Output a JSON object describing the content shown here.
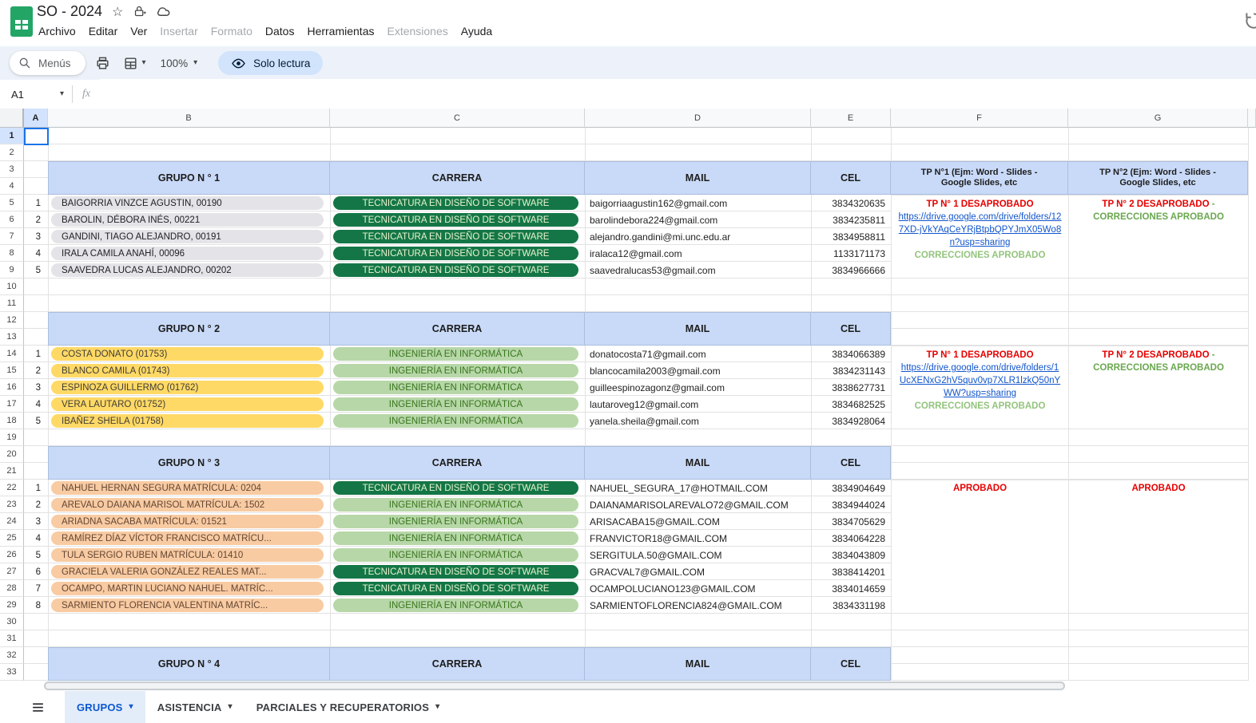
{
  "app": {
    "title": "SO - 2024"
  },
  "toolbar": {
    "search_label": "Menús",
    "zoom_level": "100%",
    "readonly_label": "Solo lectura"
  },
  "formula_bar": {
    "cell_ref": "A1",
    "fx_label": "fx"
  },
  "menus": [
    {
      "label": "Archivo",
      "enabled": true
    },
    {
      "label": "Editar",
      "enabled": true
    },
    {
      "label": "Ver",
      "enabled": true
    },
    {
      "label": "Insertar",
      "enabled": false
    },
    {
      "label": "Formato",
      "enabled": false
    },
    {
      "label": "Datos",
      "enabled": true
    },
    {
      "label": "Herramientas",
      "enabled": true
    },
    {
      "label": "Extensiones",
      "enabled": false
    },
    {
      "label": "Ayuda",
      "enabled": true
    }
  ],
  "icons": {
    "caret": "▾",
    "star": "☆"
  },
  "grid": {
    "columns": [
      "A",
      "B",
      "C",
      "D",
      "E",
      "F",
      "G"
    ],
    "visible_rows": 33,
    "selected_cell": "A1",
    "colors": {
      "band": "#c9daf8",
      "status_red": "#e60000",
      "link_blue": "#1155cc",
      "note_light_green": "#93c47d",
      "note_green": "#6aa84f"
    },
    "careers": {
      "tds": {
        "label": "TECNICATURA EN DISEÑO DE SOFTWARE",
        "bg": "#147647",
        "fg": "#e8f4cd"
      },
      "ing": {
        "label": "INGENIERÍA EN INFORMÁTICA",
        "bg": "#b7d7a8",
        "fg": "#38761d"
      }
    },
    "groups": [
      {
        "title": "GRUPO N ° 1",
        "carrera_header": "CARRERA",
        "mail_header": "MAIL",
        "cel_header": "CEL",
        "tp1_header": "TP N°1 (Ejm: Word - Slides - Google Slides, etc",
        "tp2_header": "TP N°2 (Ejm: Word - Slides - Google Slides, etc",
        "header_row_start": 3,
        "member_row_start": 5,
        "member_style": {
          "bg": "#e4e4e8",
          "fg": "#202124"
        },
        "members": [
          {
            "n": "1",
            "name": "BAIGORRIA VINZCE AGUSTIN, 00190",
            "career": "tds",
            "mail": "baigorriaagustin162@gmail.com",
            "cel": "3834320635"
          },
          {
            "n": "2",
            "name": "BAROLIN, DÉBORA INÉS, 00221",
            "career": "tds",
            "mail": "barolindebora224@gmail.com",
            "cel": "3834235811"
          },
          {
            "n": "3",
            "name": "GANDINI, TIAGO ALEJANDRO, 00191",
            "career": "tds",
            "mail": "alejandro.gandini@mi.unc.edu.ar",
            "cel": "3834958811"
          },
          {
            "n": "4",
            "name": "IRALA CAMILA ANAHÍ, 00096",
            "career": "tds",
            "mail": "iralaca12@gmail.com",
            "cel": "1133171173"
          },
          {
            "n": "5",
            "name": "SAAVEDRA LUCAS ALEJANDRO, 00202",
            "career": "tds",
            "mail": "saavedralucas53@gmail.com",
            "cel": "3834966666"
          }
        ],
        "tp1": {
          "status": "TP N° 1 DESAPROBADO",
          "link": "https://drive.google.com/drive/folders/127XD-jVkYAqCeYRjBtpbQPYJmX05Wo8n?usp=sharing",
          "note": "CORRECCIONES APROBADO"
        },
        "tp2": {
          "status": "TP N° 2 DESAPROBADO",
          "note": "- CORRECCIONES APROBADO"
        }
      },
      {
        "title": "GRUPO N ° 2",
        "carrera_header": "CARRERA",
        "mail_header": "MAIL",
        "cel_header": "CEL",
        "header_row_start": 12,
        "member_row_start": 14,
        "member_style": {
          "bg": "#ffd966",
          "fg": "#3f3c35"
        },
        "members": [
          {
            "n": "1",
            "name": "COSTA DONATO (01753)",
            "career": "ing",
            "mail": "donatocosta71@gmail.com",
            "cel": "3834066389"
          },
          {
            "n": "2",
            "name": "BLANCO CAMILA (01743)",
            "career": "ing",
            "mail": "blancocamila2003@gmail.com",
            "cel": "3834231143"
          },
          {
            "n": "3",
            "name": "ESPINOZA GUILLERMO (01762)",
            "career": "ing",
            "mail": "guilleespinozagonz@gmail.com",
            "cel": "3838627731"
          },
          {
            "n": "4",
            "name": "VERA LAUTARO (01752)",
            "career": "ing",
            "mail": "lautaroveg12@gmail.com",
            "cel": "3834682525"
          },
          {
            "n": "5",
            "name": "IBAÑEZ SHEILA (01758)",
            "career": "ing",
            "mail": "yanela.sheila@gmail.com",
            "cel": "3834928064"
          }
        ],
        "tp1": {
          "status": "TP N° 1 DESAPROBADO",
          "link": "https://drive.google.com/drive/folders/1UcXENxG2hV5quv0vp7XLR1lzkQ50nYWW?usp=sharing",
          "note": "CORRECCIONES APROBADO"
        },
        "tp2": {
          "status": "TP N° 2 DESAPROBADO",
          "note": "- CORRECCIONES APROBADO"
        }
      },
      {
        "title": "GRUPO N ° 3",
        "carrera_header": "CARRERA",
        "mail_header": "MAIL",
        "cel_header": "CEL",
        "header_row_start": 20,
        "member_row_start": 22,
        "member_style": {
          "bg": "#f8cba3",
          "fg": "#644632"
        },
        "members": [
          {
            "n": "1",
            "name": "NAHUEL HERNAN SEGURA MATRÍCULA: 0204",
            "career": "tds",
            "mail": "NAHUEL_SEGURA_17@HOTMAIL.COM",
            "cel": "3834904649"
          },
          {
            "n": "2",
            "name": "AREVALO DAIANA MARISOL MATRÍCULA: 1502",
            "career": "ing",
            "mail": "DAIANAMARISOLAREVALO72@GMAIL.COM",
            "cel": "3834944024"
          },
          {
            "n": "3",
            "name": "ARIADNA SACABA MATRÍCULA: 01521",
            "career": "ing",
            "mail": "ARISACABA15@GMAIL.COM",
            "cel": "3834705629"
          },
          {
            "n": "4",
            "name": "RAMÍREZ DÍAZ VÍCTOR FRANCISCO MATRÍCU...",
            "career": "ing",
            "mail": "FRANVICTOR18@GMAIL.COM",
            "cel": "3834064228"
          },
          {
            "n": "5",
            "name": "TULA SERGIO RUBEN MATRÍCULA: 01410",
            "career": "ing",
            "mail": "SERGITULA.50@GMAIL.COM",
            "cel": "3834043809"
          },
          {
            "n": "6",
            "name": "GRACIELA VALERIA GONZÁLEZ REALES MAT...",
            "career": "tds",
            "mail": "GRACVAL7@GMAIL.COM",
            "cel": "3838414201"
          },
          {
            "n": "7",
            "name": "OCAMPO, MARTIN LUCIANO NAHUEL. MATRÍC...",
            "career": "tds",
            "mail": "OCAMPOLUCIANO123@GMAIL.COM",
            "cel": "3834014659"
          },
          {
            "n": "8",
            "name": "SARMIENTO  FLORENCIA VALENTINA MATRÍC...",
            "career": "ing",
            "mail": "SARMIENTOFLORENCIA824@GMAIL.COM",
            "cel": "3834331198"
          }
        ],
        "tp1": {
          "status": "APROBADO"
        },
        "tp2": {
          "status": "APROBADO"
        }
      },
      {
        "title": "GRUPO N ° 4",
        "carrera_header": "CARRERA",
        "mail_header": "MAIL",
        "cel_header": "CEL",
        "header_row_start": 32,
        "member_row_start": null,
        "members": []
      }
    ]
  },
  "sheet_tabs": [
    {
      "label": "GRUPOS",
      "active": true
    },
    {
      "label": "ASISTENCIA",
      "active": false
    },
    {
      "label": "PARCIALES Y RECUPERATORIOS",
      "active": false
    }
  ]
}
